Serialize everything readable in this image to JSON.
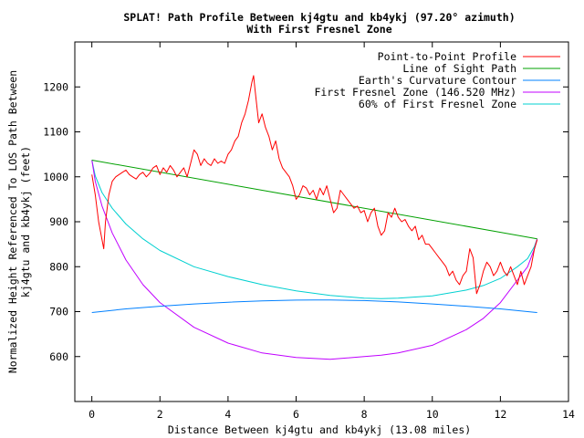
{
  "chart_data": {
    "type": "line",
    "title": "SPLAT! Path Profile Between kj4gtu and kb4ykj (97.20° azimuth)",
    "subtitle": "With First Fresnel Zone",
    "xlabel": "Distance Between kj4gtu and kb4ykj (13.08 miles)",
    "ylabel": "Normalized Height Referenced To LOS Path Between kj4gtu and kb4ykj (feet)",
    "ylabel_lines": [
      "Normalized Height Referenced To LOS Path Between",
      "kj4gtu and kb4ykj (feet)"
    ],
    "xlim": [
      -0.5,
      14
    ],
    "ylim": [
      500,
      1300
    ],
    "x_ticks": [
      0,
      2,
      4,
      6,
      8,
      10,
      12,
      14
    ],
    "x_tick_labels": [
      "0",
      "2",
      "4",
      "6",
      "8",
      "10",
      "12",
      "14"
    ],
    "y_ticks": [
      600,
      700,
      800,
      900,
      1000,
      1100,
      1200
    ],
    "y_tick_labels": [
      "600",
      "700",
      "800",
      "900",
      "1000",
      "1100",
      "1200"
    ],
    "grid": false,
    "legend_position": "top-right",
    "series": [
      {
        "name": "Point-to-Point Profile",
        "color": "#ff0000",
        "x": [
          0,
          0.1,
          0.2,
          0.3,
          0.35,
          0.4,
          0.5,
          0.6,
          0.7,
          0.8,
          0.9,
          1.0,
          1.1,
          1.2,
          1.3,
          1.4,
          1.5,
          1.6,
          1.7,
          1.8,
          1.9,
          2.0,
          2.1,
          2.2,
          2.3,
          2.4,
          2.5,
          2.6,
          2.7,
          2.8,
          2.9,
          3.0,
          3.1,
          3.2,
          3.3,
          3.4,
          3.5,
          3.6,
          3.7,
          3.8,
          3.9,
          4.0,
          4.1,
          4.2,
          4.3,
          4.4,
          4.5,
          4.6,
          4.7,
          4.75,
          4.8,
          4.9,
          5.0,
          5.1,
          5.2,
          5.3,
          5.4,
          5.5,
          5.6,
          5.7,
          5.8,
          5.9,
          6.0,
          6.1,
          6.2,
          6.3,
          6.4,
          6.5,
          6.6,
          6.7,
          6.8,
          6.9,
          7.0,
          7.1,
          7.2,
          7.3,
          7.4,
          7.5,
          7.6,
          7.7,
          7.8,
          7.9,
          8.0,
          8.1,
          8.2,
          8.3,
          8.4,
          8.5,
          8.6,
          8.7,
          8.8,
          8.9,
          9.0,
          9.1,
          9.2,
          9.3,
          9.4,
          9.5,
          9.6,
          9.7,
          9.8,
          9.9,
          10.0,
          10.1,
          10.2,
          10.3,
          10.4,
          10.5,
          10.6,
          10.7,
          10.8,
          10.9,
          11.0,
          11.1,
          11.2,
          11.3,
          11.4,
          11.5,
          11.6,
          11.7,
          11.8,
          11.9,
          12.0,
          12.1,
          12.2,
          12.3,
          12.4,
          12.5,
          12.6,
          12.7,
          12.8,
          12.9,
          13.0,
          13.08
        ],
        "y": [
          1005,
          960,
          900,
          860,
          840,
          900,
          960,
          990,
          1000,
          1005,
          1010,
          1015,
          1005,
          1000,
          995,
          1005,
          1010,
          1000,
          1008,
          1020,
          1025,
          1005,
          1020,
          1010,
          1025,
          1015,
          1000,
          1010,
          1020,
          1000,
          1030,
          1060,
          1050,
          1025,
          1040,
          1030,
          1025,
          1040,
          1030,
          1035,
          1030,
          1050,
          1060,
          1080,
          1090,
          1120,
          1140,
          1170,
          1210,
          1225,
          1190,
          1120,
          1140,
          1110,
          1090,
          1060,
          1080,
          1040,
          1020,
          1010,
          1000,
          980,
          950,
          960,
          980,
          975,
          960,
          970,
          950,
          975,
          960,
          980,
          950,
          920,
          930,
          970,
          960,
          950,
          940,
          930,
          935,
          920,
          925,
          900,
          920,
          930,
          890,
          870,
          880,
          920,
          910,
          930,
          910,
          900,
          905,
          890,
          880,
          890,
          860,
          870,
          850,
          850,
          840,
          830,
          820,
          810,
          800,
          780,
          790,
          770,
          760,
          780,
          790,
          840,
          820,
          740,
          760,
          790,
          810,
          800,
          780,
          790,
          810,
          790,
          780,
          800,
          780,
          760,
          790,
          760,
          780,
          800,
          840,
          860
        ]
      },
      {
        "name": "Line of Sight Path",
        "color": "#00a000",
        "x": [
          0,
          13.08
        ],
        "y": [
          1037,
          862
        ]
      },
      {
        "name": "Earth's Curvature Contour",
        "color": "#0080ff",
        "x": [
          0,
          1,
          2,
          3,
          4,
          5,
          6,
          6.54,
          7,
          8,
          9,
          10,
          11,
          12,
          13,
          13.08
        ],
        "y": [
          698,
          706,
          712,
          717,
          721,
          724,
          725.5,
          726,
          725.7,
          724.5,
          721.5,
          717,
          712,
          706,
          698.5,
          698
        ]
      },
      {
        "name": "First Fresnel Zone (146.520 MHz)",
        "color": "#c000ff",
        "x": [
          0,
          0.1,
          0.3,
          0.6,
          1,
          1.5,
          2,
          3,
          4,
          5,
          6,
          7,
          8,
          8.5,
          9,
          10,
          11,
          11.5,
          12,
          12.5,
          12.8,
          13.0,
          13.08
        ],
        "y": [
          1037,
          990,
          935,
          875,
          815,
          760,
          720,
          665,
          630,
          608,
          598,
          594,
          600,
          603,
          608,
          625,
          660,
          685,
          720,
          770,
          800,
          840,
          862
        ]
      },
      {
        "name": "60% of First Fresnel Zone",
        "color": "#00d0d0",
        "x": [
          0,
          0.1,
          0.3,
          0.6,
          1,
          1.5,
          2,
          3,
          4,
          5,
          6,
          7,
          8,
          8.5,
          9,
          10,
          11,
          11.5,
          12,
          12.5,
          12.8,
          13.0,
          13.08
        ],
        "y": [
          1037,
          1002,
          965,
          930,
          895,
          862,
          836,
          800,
          778,
          760,
          746,
          736,
          730,
          729,
          730,
          735,
          748,
          758,
          774,
          800,
          818,
          845,
          862
        ]
      }
    ]
  }
}
